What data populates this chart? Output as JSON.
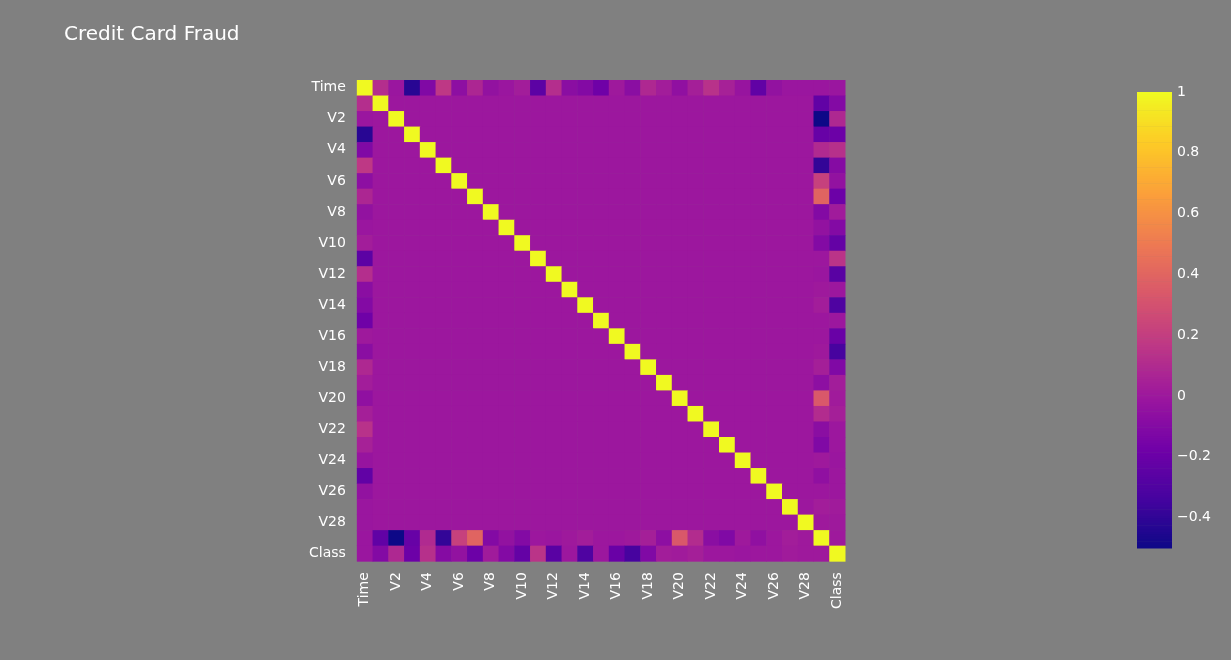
{
  "chart_data": {
    "type": "heatmap",
    "title": "Credit Card Fraud",
    "categories": [
      "Time",
      null,
      "V2",
      null,
      "V4",
      null,
      "V6",
      null,
      "V8",
      null,
      "V10",
      null,
      "V12",
      null,
      "V14",
      null,
      "V16",
      null,
      "V18",
      null,
      "V20",
      null,
      "V22",
      null,
      "V24",
      null,
      "V26",
      null,
      "V28",
      null,
      "Class"
    ],
    "y_categories": [
      "Time",
      null,
      "V2",
      null,
      "V4",
      null,
      "V6",
      null,
      "V8",
      null,
      "V10",
      null,
      "V12",
      null,
      "V14",
      null,
      "V16",
      null,
      "V18",
      null,
      "V20",
      null,
      "V22",
      null,
      "V24",
      null,
      "V26",
      null,
      "V28",
      null,
      "Class"
    ],
    "cells": [
      [
        1,
        0.12,
        -0.01,
        -0.42,
        -0.11,
        0.17,
        -0.06,
        0.08,
        -0.04,
        -0.01,
        0.03,
        -0.25,
        0.12,
        -0.07,
        -0.1,
        -0.18,
        0.01,
        -0.07,
        0.09,
        0.03,
        -0.05,
        0.04,
        0.14,
        0.05,
        -0.02,
        -0.23,
        -0.04,
        -0.01,
        -0.01,
        -0.01,
        -0.01
      ],
      [
        0.12,
        1,
        0,
        0,
        0,
        0,
        0,
        0,
        0,
        0,
        0,
        0,
        0,
        0,
        0,
        0,
        0,
        0,
        0,
        0,
        0,
        0,
        0,
        0,
        0,
        0,
        0,
        0,
        0,
        -0.23,
        -0.1
      ],
      [
        -0.01,
        0,
        1,
        0,
        0,
        0,
        0,
        0,
        0,
        0,
        0,
        0,
        0,
        0,
        0,
        0,
        0,
        0,
        0,
        0,
        0,
        0,
        0,
        0,
        0,
        0,
        0,
        0,
        0,
        -0.5,
        0.09
      ],
      [
        -0.42,
        0,
        0,
        1,
        0,
        0,
        0,
        0,
        0,
        0,
        0,
        0,
        0,
        0,
        0,
        0,
        0,
        0,
        0,
        0,
        0,
        0,
        0,
        0,
        0,
        0,
        0,
        0,
        0,
        -0.21,
        -0.19
      ],
      [
        -0.11,
        0,
        0,
        0,
        1,
        0,
        0,
        0,
        0,
        0,
        0,
        0,
        0,
        0,
        0,
        0,
        0,
        0,
        0,
        0,
        0,
        0,
        0,
        0,
        0,
        0,
        0,
        0,
        0,
        0.1,
        0.13
      ],
      [
        0.17,
        0,
        0,
        0,
        0,
        1,
        0,
        0,
        0,
        0,
        0,
        0,
        0,
        0,
        0,
        0,
        0,
        0,
        0,
        0,
        0,
        0,
        0,
        0,
        0,
        0,
        0,
        0,
        0,
        -0.39,
        -0.09
      ],
      [
        -0.06,
        0,
        0,
        0,
        0,
        0,
        1,
        0,
        0,
        0,
        0,
        0,
        0,
        0,
        0,
        0,
        0,
        0,
        0,
        0,
        0,
        0,
        0,
        0,
        0,
        0,
        0,
        0,
        0,
        0.22,
        -0.04
      ],
      [
        0.08,
        0,
        0,
        0,
        0,
        0,
        0,
        1,
        0,
        0,
        0,
        0,
        0,
        0,
        0,
        0,
        0,
        0,
        0,
        0,
        0,
        0,
        0,
        0,
        0,
        0,
        0,
        0,
        0,
        0.4,
        -0.19
      ],
      [
        -0.04,
        0,
        0,
        0,
        0,
        0,
        0,
        0,
        1,
        0,
        0,
        0,
        0,
        0,
        0,
        0,
        0,
        0,
        0,
        0,
        0,
        0,
        0,
        0,
        0,
        0,
        0,
        0,
        0,
        -0.1,
        0.02
      ],
      [
        -0.01,
        0,
        0,
        0,
        0,
        0,
        0,
        0,
        0,
        1,
        0,
        0,
        0,
        0,
        0,
        0,
        0,
        0,
        0,
        0,
        0,
        0,
        0,
        0,
        0,
        0,
        0,
        0,
        0,
        -0.04,
        -0.1
      ],
      [
        0.03,
        0,
        0,
        0,
        0,
        0,
        0,
        0,
        0,
        0,
        1,
        0,
        0,
        0,
        0,
        0,
        0,
        0,
        0,
        0,
        0,
        0,
        0,
        0,
        0,
        0,
        0,
        0,
        0,
        -0.1,
        -0.22
      ],
      [
        -0.25,
        0,
        0,
        0,
        0,
        0,
        0,
        0,
        0,
        0,
        0,
        1,
        0,
        0,
        0,
        0,
        0,
        0,
        0,
        0,
        0,
        0,
        0,
        0,
        0,
        0,
        0,
        0,
        0,
        0,
        0.15
      ],
      [
        0.12,
        0,
        0,
        0,
        0,
        0,
        0,
        0,
        0,
        0,
        0,
        0,
        1,
        0,
        0,
        0,
        0,
        0,
        0,
        0,
        0,
        0,
        0,
        0,
        0,
        0,
        0,
        0,
        0,
        -0.01,
        -0.26
      ],
      [
        -0.07,
        0,
        0,
        0,
        0,
        0,
        0,
        0,
        0,
        0,
        0,
        0,
        0,
        1,
        0,
        0,
        0,
        0,
        0,
        0,
        0,
        0,
        0,
        0,
        0,
        0,
        0,
        0,
        0,
        0.01,
        0
      ],
      [
        -0.1,
        0,
        0,
        0,
        0,
        0,
        0,
        0,
        0,
        0,
        0,
        0,
        0,
        0,
        1,
        0,
        0,
        0,
        0,
        0,
        0,
        0,
        0,
        0,
        0,
        0,
        0,
        0,
        0,
        0.03,
        -0.3
      ],
      [
        -0.18,
        0,
        0,
        0,
        0,
        0,
        0,
        0,
        0,
        0,
        0,
        0,
        0,
        0,
        0,
        1,
        0,
        0,
        0,
        0,
        0,
        0,
        0,
        0,
        0,
        0,
        0,
        0,
        0,
        0,
        0
      ],
      [
        0.01,
        0,
        0,
        0,
        0,
        0,
        0,
        0,
        0,
        0,
        0,
        0,
        0,
        0,
        0,
        0,
        1,
        0,
        0,
        0,
        0,
        0,
        0,
        0,
        0,
        0,
        0,
        0,
        0,
        0,
        -0.2
      ],
      [
        -0.07,
        0,
        0,
        0,
        0,
        0,
        0,
        0,
        0,
        0,
        0,
        0,
        0,
        0,
        0,
        0,
        0,
        1,
        0,
        0,
        0,
        0,
        0,
        0,
        0,
        0,
        0,
        0,
        0,
        0.01,
        -0.33
      ],
      [
        0.09,
        0,
        0,
        0,
        0,
        0,
        0,
        0,
        0,
        0,
        0,
        0,
        0,
        0,
        0,
        0,
        0,
        0,
        1,
        0,
        0,
        0,
        0,
        0,
        0,
        0,
        0,
        0,
        0,
        0.04,
        -0.11
      ],
      [
        0.03,
        0,
        0,
        0,
        0,
        0,
        0,
        0,
        0,
        0,
        0,
        0,
        0,
        0,
        0,
        0,
        0,
        0,
        0,
        1,
        0,
        0,
        0,
        0,
        0,
        0,
        0,
        0,
        0,
        -0.06,
        0.03
      ],
      [
        -0.05,
        0,
        0,
        0,
        0,
        0,
        0,
        0,
        0,
        0,
        0,
        0,
        0,
        0,
        0,
        0,
        0,
        0,
        0,
        0,
        1,
        0,
        0,
        0,
        0,
        0,
        0,
        0,
        0,
        0.34,
        0.02
      ],
      [
        0.04,
        0,
        0,
        0,
        0,
        0,
        0,
        0,
        0,
        0,
        0,
        0,
        0,
        0,
        0,
        0,
        0,
        0,
        0,
        0,
        0,
        1,
        0,
        0,
        0,
        0,
        0,
        0,
        0,
        0.11,
        0.04
      ],
      [
        0.14,
        0,
        0,
        0,
        0,
        0,
        0,
        0,
        0,
        0,
        0,
        0,
        0,
        0,
        0,
        0,
        0,
        0,
        0,
        0,
        0,
        0,
        1,
        0,
        0,
        0,
        0,
        0,
        0,
        -0.07,
        0
      ],
      [
        0.05,
        0,
        0,
        0,
        0,
        0,
        0,
        0,
        0,
        0,
        0,
        0,
        0,
        0,
        0,
        0,
        0,
        0,
        0,
        0,
        0,
        0,
        0,
        1,
        0,
        0,
        0,
        0,
        0,
        -0.11,
        0
      ],
      [
        -0.02,
        0,
        0,
        0,
        0,
        0,
        0,
        0,
        0,
        0,
        0,
        0,
        0,
        0,
        0,
        0,
        0,
        0,
        0,
        0,
        0,
        0,
        0,
        0,
        1,
        0,
        0,
        0,
        0,
        0.01,
        -0.01
      ],
      [
        -0.23,
        0,
        0,
        0,
        0,
        0,
        0,
        0,
        0,
        0,
        0,
        0,
        0,
        0,
        0,
        0,
        0,
        0,
        0,
        0,
        0,
        0,
        0,
        0,
        0,
        1,
        0,
        0,
        0,
        -0.05,
        0
      ],
      [
        -0.04,
        0,
        0,
        0,
        0,
        0,
        0,
        0,
        0,
        0,
        0,
        0,
        0,
        0,
        0,
        0,
        0,
        0,
        0,
        0,
        0,
        0,
        0,
        0,
        0,
        0,
        1,
        0,
        0,
        0,
        0
      ],
      [
        -0.01,
        0,
        0,
        0,
        0,
        0,
        0,
        0,
        0,
        0,
        0,
        0,
        0,
        0,
        0,
        0,
        0,
        0,
        0,
        0,
        0,
        0,
        0,
        0,
        0,
        0,
        0,
        1,
        0,
        0.03,
        0.02
      ],
      [
        -0.01,
        0,
        0,
        0,
        0,
        0,
        0,
        0,
        0,
        0,
        0,
        0,
        0,
        0,
        0,
        0,
        0,
        0,
        0,
        0,
        0,
        0,
        0,
        0,
        0,
        0,
        0,
        0,
        1,
        0.01,
        0.01
      ],
      [
        -0.01,
        -0.23,
        -0.5,
        -0.21,
        0.1,
        -0.39,
        0.22,
        0.4,
        -0.1,
        -0.04,
        -0.1,
        0,
        -0.01,
        0.01,
        0.03,
        0,
        0,
        0.01,
        0.04,
        -0.06,
        0.34,
        0.11,
        -0.07,
        -0.11,
        0.01,
        -0.05,
        0,
        0.03,
        0.01,
        1,
        0.01
      ],
      [
        -0.01,
        -0.1,
        0.09,
        -0.19,
        0.13,
        -0.09,
        -0.04,
        -0.19,
        0.02,
        -0.1,
        -0.22,
        0.15,
        -0.26,
        0,
        -0.3,
        0,
        -0.2,
        -0.33,
        -0.11,
        0.03,
        0.02,
        0.04,
        0,
        0,
        -0.01,
        0,
        0,
        0.02,
        0.01,
        0.01,
        1
      ]
    ],
    "clim": [
      -0.5,
      1
    ],
    "cticks": [
      {
        "value": -0.4,
        "label": "−0.4"
      },
      {
        "value": -0.2,
        "label": "−0.2"
      },
      0,
      0.2,
      0.4,
      0.6,
      0.8,
      1
    ]
  }
}
